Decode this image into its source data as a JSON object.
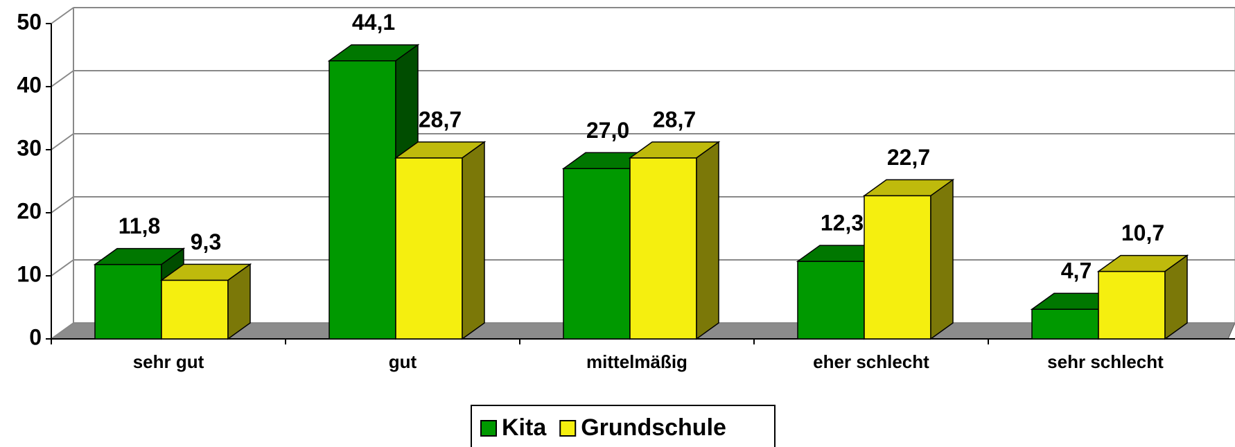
{
  "chart_data": {
    "type": "bar3d",
    "categories": [
      "sehr gut",
      "gut",
      "mittelmäßig",
      "eher schlecht",
      "sehr schlecht"
    ],
    "series": [
      {
        "name": "Kita",
        "color": "#009900",
        "values": [
          11.8,
          44.1,
          27.0,
          12.3,
          4.7
        ],
        "value_labels": [
          "11,8",
          "44,1",
          "27,0",
          "12,3",
          "4,7"
        ]
      },
      {
        "name": "Grundschule",
        "color": "#f5ef0f",
        "values": [
          9.3,
          28.7,
          28.7,
          22.7,
          10.7
        ],
        "value_labels": [
          "9,3",
          "28,7",
          "28,7",
          "22,7",
          "10,7"
        ]
      }
    ],
    "ylim": [
      0,
      50
    ],
    "yticks": [
      0,
      10,
      20,
      30,
      40,
      50
    ],
    "grid": true,
    "legend": "bottom"
  }
}
